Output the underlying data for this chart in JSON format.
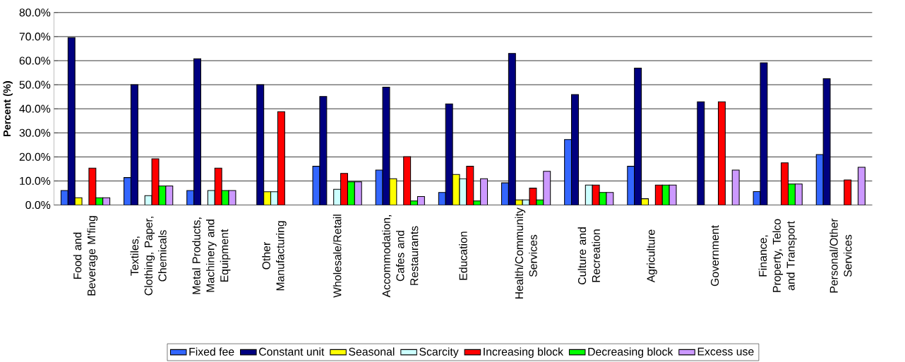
{
  "chart_data": {
    "type": "bar",
    "ylabel": "Percent (%)",
    "categories": [
      "Food and Beverage M'fing",
      "Textiles, Clothing, Paper, Chemicals",
      "Metal Products, Machinery and Equipment",
      "Other Manufacturing",
      "Wholesale/Retail",
      "Accommodation, Cafes and Restaurants",
      "Education",
      "Health/Community Services",
      "Culture and Recreation",
      "Agriculture",
      "Government",
      "Finance, Property, Telco and Transport",
      "Personal/Other Services"
    ],
    "series": [
      {
        "name": "Fixed fee",
        "color": "#3366ff",
        "values": [
          6.0,
          11.4,
          6.0,
          null,
          16.1,
          14.5,
          5.2,
          9.2,
          27.2,
          16.1,
          null,
          5.6,
          21.0
        ]
      },
      {
        "name": "Constant unit",
        "color": "#000080",
        "values": [
          69.6,
          50.0,
          60.8,
          50.0,
          45.1,
          49.0,
          42.0,
          63.0,
          45.9,
          56.9,
          42.9,
          59.1,
          52.5
        ]
      },
      {
        "name": "Seasonal",
        "color": "#ffff00",
        "values": [
          3.0,
          null,
          null,
          5.5,
          null,
          10.9,
          12.7,
          2.1,
          null,
          2.6,
          null,
          null,
          null
        ]
      },
      {
        "name": "Scarcity",
        "color": "#ccffff",
        "values": [
          null,
          3.9,
          6.0,
          5.5,
          6.5,
          null,
          10.9,
          2.1,
          8.3,
          null,
          null,
          null,
          null
        ]
      },
      {
        "name": "Increasing block",
        "color": "#ff0000",
        "values": [
          15.3,
          19.2,
          15.3,
          38.8,
          13.1,
          20.1,
          16.1,
          7.0,
          8.3,
          8.3,
          42.9,
          17.5,
          10.4
        ]
      },
      {
        "name": "Decreasing block",
        "color": "#00ff00",
        "values": [
          3.0,
          7.9,
          6.0,
          null,
          9.6,
          1.7,
          1.7,
          2.1,
          5.2,
          8.3,
          null,
          8.7,
          null
        ]
      },
      {
        "name": "Excess use",
        "color": "#cc99ff",
        "values": [
          3.0,
          7.9,
          6.0,
          null,
          9.6,
          3.5,
          10.9,
          14.0,
          5.2,
          8.3,
          14.5,
          8.7,
          15.7
        ]
      }
    ],
    "ylim": [
      0,
      80
    ],
    "yticks": [
      {
        "value": 0,
        "label": "0.0%"
      },
      {
        "value": 10,
        "label": "10.0%"
      },
      {
        "value": 20,
        "label": "20.0%"
      },
      {
        "value": 30,
        "label": "30.0%"
      },
      {
        "value": 40,
        "label": "40.0%"
      },
      {
        "value": 50,
        "label": "50.0%"
      },
      {
        "value": 60,
        "label": "60.0%"
      },
      {
        "value": 70,
        "label": "70.0%"
      },
      {
        "value": 80,
        "label": "80.0%"
      }
    ],
    "grid": "y",
    "legend": "bottom"
  }
}
